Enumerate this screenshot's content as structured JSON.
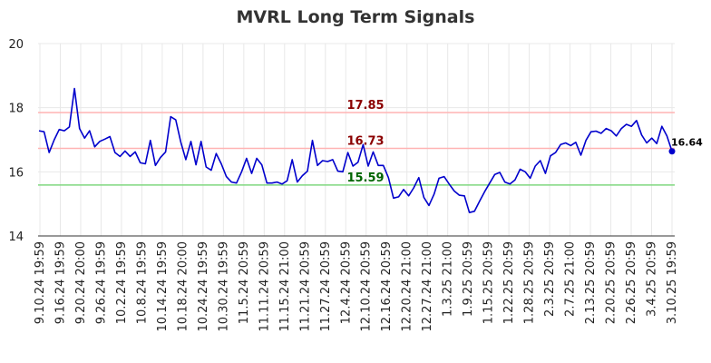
{
  "chart_data": {
    "type": "line",
    "title": "MVRL Long Term Signals",
    "xlabel": "",
    "ylabel": "",
    "ylim": [
      14,
      20
    ],
    "yticks": [
      14,
      16,
      18,
      20
    ],
    "grid": true,
    "x_tick_labels": [
      "9.10.24 19:59",
      "9.16.24 19:59",
      "9.20.24 20:00",
      "9.26.24 19:59",
      "10.2.24 19:59",
      "10.8.24 19:59",
      "10.14.24 19:59",
      "10.18.24 20:00",
      "10.24.24 19:59",
      "10.30.24 19:59",
      "11.5.24 20:59",
      "11.11.24 20:59",
      "11.15.24 21:00",
      "11.21.24 20:59",
      "11.27.24 20:59",
      "12.4.24 20:59",
      "12.10.24 20:59",
      "12.16.24 20:59",
      "12.20.24 21:00",
      "12.27.24 21:00",
      "1.3.25 21:00",
      "1.9.25 20:59",
      "1.15.25 20:59",
      "1.22.25 20:59",
      "1.28.25 20:59",
      "2.3.25 20:59",
      "2.7.25 21:00",
      "2.13.25 20:59",
      "2.20.25 20:59",
      "2.26.25 20:59",
      "3.4.25 20:59",
      "3.10.25 19:59"
    ],
    "series": [
      {
        "color": "#0000cc",
        "values": [
          17.28,
          17.25,
          16.6,
          17.0,
          17.32,
          17.28,
          17.4,
          18.6,
          17.35,
          17.05,
          17.28,
          16.78,
          16.95,
          17.02,
          17.1,
          16.6,
          16.48,
          16.65,
          16.48,
          16.62,
          16.28,
          16.25,
          16.98,
          16.2,
          16.45,
          16.62,
          17.72,
          17.62,
          16.92,
          16.38,
          16.95,
          16.22,
          16.95,
          16.15,
          16.05,
          16.57,
          16.25,
          15.85,
          15.68,
          15.65,
          16.0,
          16.42,
          15.95,
          16.42,
          16.22,
          15.65,
          15.65,
          15.68,
          15.62,
          15.72,
          16.38,
          15.68,
          15.88,
          16.02,
          16.98,
          16.2,
          16.35,
          16.32,
          16.38,
          16.02,
          16.0,
          16.6,
          16.18,
          16.3,
          16.85,
          16.18,
          16.62,
          16.2,
          16.2,
          15.82,
          15.18,
          15.22,
          15.45,
          15.25,
          15.5,
          15.82,
          15.2,
          14.95,
          15.3,
          15.8,
          15.85,
          15.62,
          15.4,
          15.27,
          15.25,
          14.73,
          14.77,
          15.08,
          15.38,
          15.65,
          15.92,
          15.98,
          15.68,
          15.62,
          15.75,
          16.08,
          16.0,
          15.8,
          16.18,
          16.35,
          15.95,
          16.5,
          16.6,
          16.85,
          16.9,
          16.82,
          16.92,
          16.52,
          16.98,
          17.25,
          17.27,
          17.2,
          17.35,
          17.28,
          17.12,
          17.35,
          17.48,
          17.42,
          17.6,
          17.15,
          16.9,
          17.05,
          16.88,
          17.42,
          17.12,
          16.64
        ]
      }
    ],
    "levels": [
      {
        "value": 17.85,
        "label": "17.85",
        "line_color": "#ffb3b3",
        "text_color": "#8b0000"
      },
      {
        "value": 16.73,
        "label": "16.73",
        "line_color": "#ffb3b3",
        "text_color": "#8b0000"
      },
      {
        "value": 15.59,
        "label": "15.59",
        "line_color": "#7fd87f",
        "text_color": "#006400"
      }
    ],
    "last_value": 16.64,
    "last_label": "16.64"
  }
}
